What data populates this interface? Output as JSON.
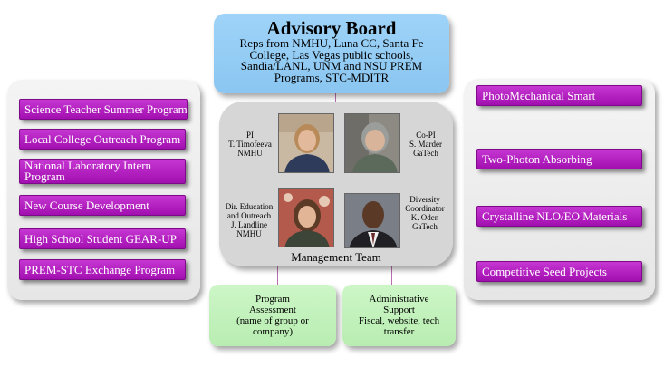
{
  "advisory_board": {
    "title": "Advisory Board",
    "body": "Reps from NMHU, Luna CC, Santa Fe College, Las Vegas public schools, Sandia/LANL, UNM and NSU PREM Programs, STC-MDITR"
  },
  "left_programs": [
    "Science Teacher Summer Program",
    "Local College Outreach Program",
    "National Laboratory Intern Program",
    "New Course Development",
    "High School Student GEAR-UP",
    "PREM-STC Exchange Program"
  ],
  "right_programs": [
    "PhotoMechanical Smart",
    "Two-Photon Absorbing",
    "Crystalline NLO/EO Materials",
    "Competitive Seed Projects"
  ],
  "management_team": {
    "title": "Management Team",
    "people": [
      {
        "role": "PI",
        "name": "T. Timofeeva",
        "org": "NMHU"
      },
      {
        "role": "Co-PI",
        "name": "S. Marder",
        "org": "GaTech"
      },
      {
        "role": "Dir. Education and Outreach",
        "name": "J. Landline",
        "org": "NMHU"
      },
      {
        "role": "Diversity Coordinator",
        "name": "K. Oden",
        "org": "GaTech"
      }
    ]
  },
  "program_assessment": {
    "title": "Program Assessment",
    "detail": "(name of group or company)"
  },
  "administrative_support": {
    "title": "Administrative Support",
    "detail": "Fiscal, website, tech transfer"
  },
  "colors": {
    "advisory": "#9fd3f8",
    "program_button": "#b321c1",
    "green_box": "#c4f2bd",
    "connector": "#b76fb0"
  }
}
